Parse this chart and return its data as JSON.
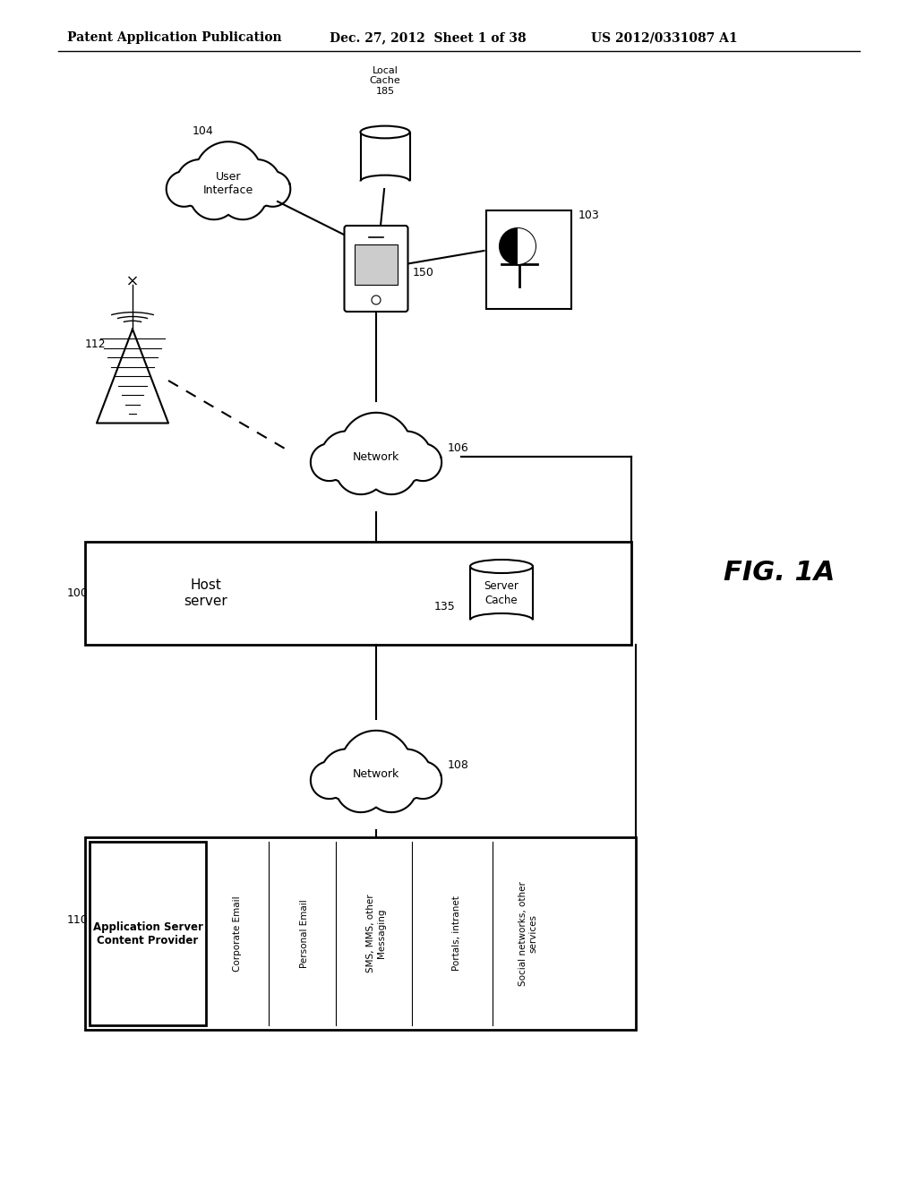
{
  "header_left": "Patent Application Publication",
  "header_mid": "Dec. 27, 2012  Sheet 1 of 38",
  "header_right": "US 2012/0331087 A1",
  "fig_label": "FIG. 1A",
  "bg_color": "#ffffff"
}
